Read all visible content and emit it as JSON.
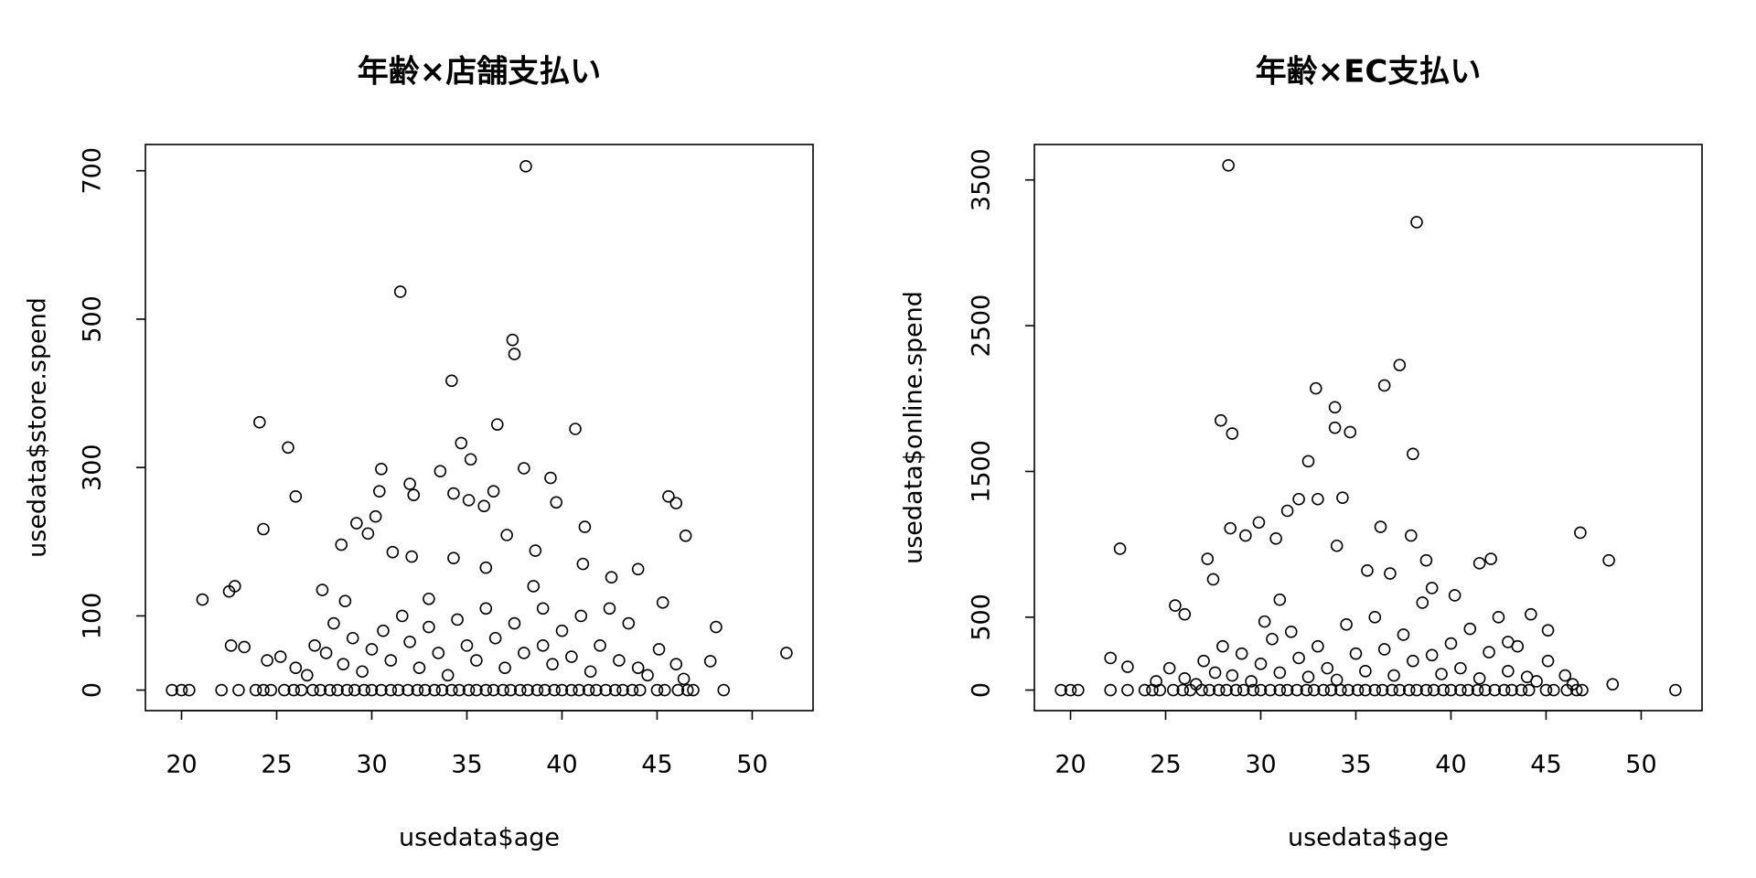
{
  "chart_data": [
    {
      "type": "scatter",
      "title": "年齢×店舗支払い",
      "xlabel": "usedata$age",
      "ylabel": "usedata$store.spend",
      "x": [
        19.5,
        20.0,
        20.4,
        22.1,
        23.0,
        23.9,
        24.3,
        24.7,
        25.4,
        25.9,
        26.3,
        26.9,
        27.3,
        27.8,
        28.2,
        28.7,
        29.1,
        29.6,
        30.0,
        30.5,
        31.0,
        31.4,
        31.9,
        32.4,
        32.8,
        33.3,
        33.7,
        34.2,
        34.6,
        35.1,
        35.5,
        36.0,
        36.4,
        36.9,
        37.3,
        37.8,
        38.2,
        38.7,
        39.1,
        39.6,
        40.0,
        40.5,
        40.9,
        41.4,
        41.8,
        42.3,
        42.8,
        43.2,
        43.7,
        44.1,
        45.0,
        45.4,
        46.1,
        46.6,
        46.9,
        48.5,
        24.5,
        25.2,
        26.0,
        26.6,
        27.0,
        27.6,
        28.0,
        28.5,
        29.0,
        29.5,
        30.0,
        30.6,
        31.0,
        31.6,
        32.0,
        32.5,
        33.0,
        33.5,
        34.0,
        34.5,
        35.0,
        35.5,
        36.0,
        36.5,
        37.0,
        37.5,
        38.0,
        38.5,
        39.0,
        39.5,
        40.0,
        40.5,
        41.0,
        41.5,
        42.0,
        42.5,
        43.0,
        43.5,
        44.0,
        44.5,
        45.1,
        46.0,
        46.4,
        38.1,
        31.5,
        37.4,
        37.5,
        34.2,
        24.1,
        36.6,
        40.7,
        25.6,
        34.7,
        35.2,
        30.5,
        38.0,
        33.6,
        39.4,
        32.0,
        30.4,
        36.4,
        32.2,
        26.0,
        34.3,
        45.6,
        46.0,
        35.1,
        39.7,
        35.9,
        30.2,
        29.2,
        41.2,
        24.3,
        29.8,
        46.5,
        37.1,
        28.4,
        38.6,
        31.1,
        34.3,
        32.1,
        44.0,
        41.1,
        21.1,
        22.8,
        22.5,
        48.1,
        51.8,
        47.8,
        22.6,
        23.3,
        27.4,
        28.6,
        36.0,
        42.6,
        45.3,
        33.0,
        39.0
      ],
      "values": [
        0,
        0,
        0,
        0,
        0,
        0,
        0,
        0,
        0,
        0,
        0,
        0,
        0,
        0,
        0,
        0,
        0,
        0,
        0,
        0,
        0,
        0,
        0,
        0,
        0,
        0,
        0,
        0,
        0,
        0,
        0,
        0,
        0,
        0,
        0,
        0,
        0,
        0,
        0,
        0,
        0,
        0,
        0,
        0,
        0,
        0,
        0,
        0,
        0,
        0,
        0,
        0,
        0,
        0,
        0,
        0,
        40,
        45,
        30,
        20,
        60,
        50,
        90,
        35,
        70,
        25,
        55,
        80,
        40,
        100,
        65,
        30,
        85,
        50,
        20,
        95,
        60,
        40,
        110,
        70,
        30,
        90,
        50,
        140,
        60,
        35,
        80,
        45,
        100,
        25,
        60,
        110,
        40,
        90,
        30,
        20,
        55,
        35,
        15,
        706,
        537,
        472,
        453,
        417,
        361,
        358,
        352,
        327,
        333,
        311,
        298,
        299,
        295,
        286,
        278,
        268,
        268,
        263,
        261,
        265,
        261,
        252,
        256,
        253,
        248,
        234,
        225,
        220,
        217,
        211,
        208,
        209,
        196,
        188,
        186,
        178,
        180,
        163,
        170,
        122,
        140,
        133,
        85,
        50,
        39,
        60,
        58,
        135,
        120,
        165,
        152,
        118,
        123,
        110
      ],
      "xlim": [
        18.1,
        53.2
      ],
      "ylim": [
        -27.7,
        735.4
      ],
      "xticks": [
        20,
        25,
        30,
        35,
        40,
        45,
        50
      ],
      "yticks": [
        0,
        100,
        300,
        500,
        700
      ],
      "color": "#000000"
    },
    {
      "type": "scatter",
      "title": "年齢×EC支払い",
      "xlabel": "usedata$age",
      "ylabel": "usedata$online.spend",
      "x": [
        19.5,
        20.0,
        20.4,
        22.1,
        23.0,
        23.9,
        24.3,
        24.7,
        25.4,
        25.9,
        26.3,
        26.9,
        27.3,
        27.8,
        28.2,
        28.7,
        29.1,
        29.6,
        30.0,
        30.5,
        31.0,
        31.4,
        31.9,
        32.4,
        32.8,
        33.3,
        33.7,
        34.2,
        34.6,
        35.1,
        35.5,
        36.0,
        36.4,
        36.9,
        37.3,
        37.8,
        38.2,
        38.7,
        39.1,
        39.6,
        40.0,
        40.5,
        40.9,
        41.4,
        41.8,
        42.3,
        42.8,
        43.2,
        43.7,
        44.1,
        45.0,
        45.4,
        46.1,
        46.6,
        46.9,
        51.8,
        24.5,
        25.2,
        26.0,
        26.6,
        27.0,
        27.6,
        28.0,
        28.5,
        29.0,
        29.5,
        30.0,
        30.6,
        31.0,
        31.6,
        32.0,
        32.5,
        33.0,
        33.5,
        34.0,
        34.5,
        35.0,
        35.5,
        36.0,
        36.5,
        37.0,
        37.5,
        38.0,
        38.5,
        39.0,
        39.5,
        40.0,
        40.5,
        41.0,
        41.5,
        42.0,
        42.5,
        43.0,
        43.5,
        44.0,
        44.5,
        45.1,
        46.0,
        46.4,
        28.3,
        38.2,
        37.3,
        36.5,
        32.9,
        33.9,
        27.9,
        33.9,
        34.7,
        28.5,
        38.0,
        32.5,
        34.3,
        32.0,
        33.0,
        31.4,
        36.3,
        28.4,
        29.2,
        29.9,
        46.8,
        37.9,
        48.3,
        22.6,
        42.1,
        41.5,
        27.2,
        38.7,
        34.0,
        30.8,
        44.2,
        45.1,
        22.1,
        48.5,
        23.0,
        25.5,
        26.0,
        27.5,
        39.0,
        40.2,
        43.0,
        35.6,
        36.8,
        31.0,
        30.2
      ],
      "values": [
        0,
        0,
        0,
        0,
        0,
        0,
        0,
        0,
        0,
        0,
        0,
        0,
        0,
        0,
        0,
        0,
        0,
        0,
        0,
        0,
        0,
        0,
        0,
        0,
        0,
        0,
        0,
        0,
        0,
        0,
        0,
        0,
        0,
        0,
        0,
        0,
        0,
        0,
        0,
        0,
        0,
        0,
        0,
        0,
        0,
        0,
        0,
        0,
        0,
        0,
        0,
        0,
        0,
        0,
        0,
        0,
        60,
        150,
        80,
        40,
        200,
        120,
        300,
        100,
        250,
        60,
        180,
        350,
        120,
        400,
        220,
        90,
        300,
        150,
        70,
        450,
        250,
        130,
        500,
        280,
        100,
        380,
        200,
        600,
        240,
        110,
        320,
        150,
        420,
        80,
        260,
        500,
        130,
        300,
        90,
        60,
        200,
        100,
        40,
        3600,
        3210,
        2230,
        2090,
        2070,
        1940,
        1850,
        1800,
        1770,
        1760,
        1620,
        1570,
        1320,
        1310,
        1310,
        1230,
        1120,
        1110,
        1060,
        1150,
        1080,
        1060,
        890,
        970,
        900,
        870,
        900,
        890,
        990,
        1040,
        520,
        410,
        220,
        40,
        160,
        580,
        520,
        760,
        700,
        650,
        330,
        820,
        800,
        620,
        470
      ],
      "xlim": [
        18.1,
        53.2
      ],
      "ylim": [
        -141,
        3743
      ],
      "xticks": [
        20,
        25,
        30,
        35,
        40,
        45,
        50
      ],
      "yticks": [
        0,
        500,
        1500,
        2500,
        3500
      ],
      "color": "#000000"
    }
  ]
}
